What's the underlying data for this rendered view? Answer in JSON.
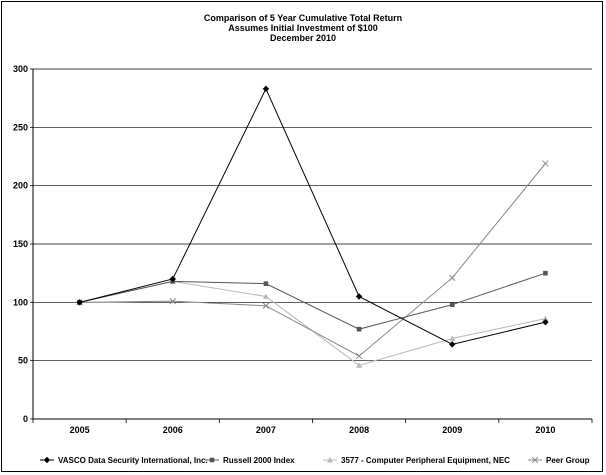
{
  "chart_data": {
    "type": "line",
    "title": [
      "Comparison of 5 Year Cumulative Total Return",
      "Assumes Initial Investment of $100",
      "December 2010"
    ],
    "xlabel": "",
    "ylabel": "",
    "categories": [
      "2005",
      "2006",
      "2007",
      "2008",
      "2009",
      "2010"
    ],
    "ylim": [
      0,
      300
    ],
    "yticks": [
      "0",
      "50",
      "100",
      "150",
      "200",
      "250",
      "300"
    ],
    "grid": true,
    "legend_position": "bottom",
    "series": [
      {
        "name": "VASCO Data Security International, Inc.",
        "values": [
          100,
          120,
          283,
          105,
          64,
          83
        ],
        "color": "#000000",
        "marker": "diamond"
      },
      {
        "name": "Russell 2000 Index",
        "values": [
          100,
          118,
          116,
          77,
          98,
          125
        ],
        "color": "#555555",
        "marker": "square"
      },
      {
        "name": "3577 - Computer Peripheral Equipment, NEC",
        "values": [
          100,
          118,
          105,
          46,
          69,
          86
        ],
        "color": "#b8b8b8",
        "marker": "triangle"
      },
      {
        "name": "Peer Group",
        "values": [
          100,
          101,
          97,
          54,
          121,
          219
        ],
        "color": "#888888",
        "marker": "x"
      }
    ]
  }
}
